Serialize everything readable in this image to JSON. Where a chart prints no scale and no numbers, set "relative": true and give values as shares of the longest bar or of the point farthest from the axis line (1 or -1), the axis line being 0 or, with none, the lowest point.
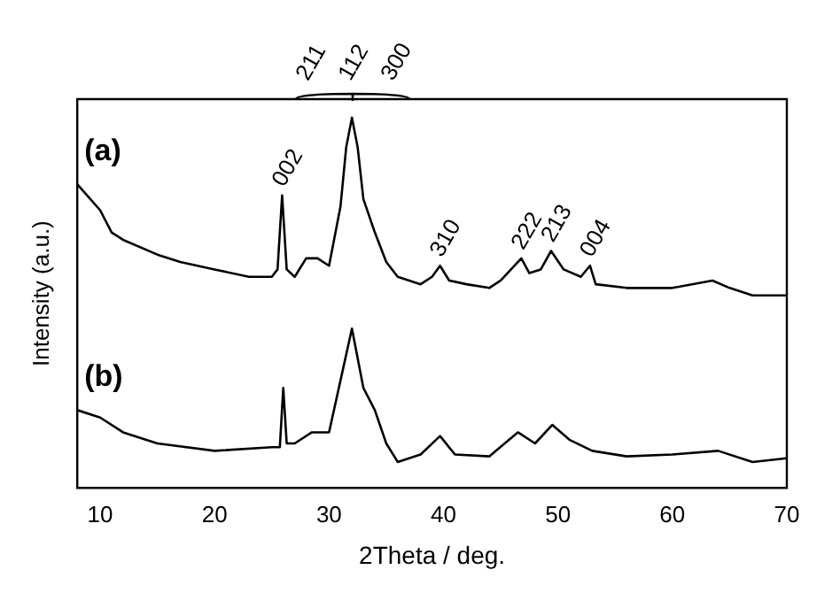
{
  "chart_data": {
    "type": "line",
    "relative": true,
    "xlabel": "2Theta / deg.",
    "ylabel": "Intensity (a.u.)",
    "xlim": [
      8,
      70
    ],
    "xticks": [
      10,
      20,
      30,
      40,
      50,
      60,
      70
    ],
    "grid": false,
    "legend": false,
    "marker": "none",
    "line_style": "solid",
    "series": [
      {
        "name": "(a)",
        "color": "#000000",
        "x": [
          8,
          10,
          11,
          12,
          15,
          17,
          20,
          23,
          25,
          25.5,
          25.9,
          26.3,
          27,
          28,
          29,
          30,
          31,
          31.5,
          32,
          32.5,
          33,
          34,
          35,
          36,
          38,
          39,
          39.7,
          40.5,
          42,
          44,
          45,
          46.8,
          47.5,
          48.5,
          49.4,
          50.5,
          52,
          52.8,
          53.3,
          56,
          60,
          63.5,
          65,
          67,
          70
        ],
        "values": [
          0.82,
          0.75,
          0.69,
          0.67,
          0.63,
          0.61,
          0.59,
          0.57,
          0.57,
          0.59,
          0.79,
          0.59,
          0.57,
          0.62,
          0.62,
          0.6,
          0.76,
          0.92,
          1,
          0.92,
          0.78,
          0.69,
          0.61,
          0.57,
          0.55,
          0.57,
          0.6,
          0.56,
          0.55,
          0.54,
          0.56,
          0.62,
          0.58,
          0.59,
          0.64,
          0.59,
          0.57,
          0.6,
          0.55,
          0.54,
          0.54,
          0.56,
          0.54,
          0.52,
          0.52
        ]
      },
      {
        "name": "(b)",
        "color": "#000000",
        "x": [
          8,
          10,
          12,
          15,
          20,
          25,
          25.7,
          26,
          26.3,
          27,
          28.5,
          30,
          31,
          32,
          33,
          34,
          35,
          36,
          38,
          39.7,
          41,
          44,
          46.5,
          48,
          49.5,
          51,
          53,
          56,
          60,
          64,
          67,
          70
        ],
        "values": [
          0.21,
          0.19,
          0.15,
          0.12,
          0.1,
          0.11,
          0.11,
          0.27,
          0.12,
          0.12,
          0.15,
          0.15,
          0.29,
          0.43,
          0.27,
          0.21,
          0.12,
          0.07,
          0.09,
          0.14,
          0.09,
          0.085,
          0.15,
          0.12,
          0.17,
          0.13,
          0.1,
          0.085,
          0.09,
          0.1,
          0.07,
          0.08
        ]
      }
    ],
    "annotations": [
      {
        "text": "002",
        "x": 25.9,
        "y": 0.79
      },
      "211",
      "112",
      "300",
      {
        "text": "310",
        "x": 39.7,
        "y": 0.6
      },
      {
        "text": "222",
        "x": 46.8,
        "y": 0.62
      },
      {
        "text": "213",
        "x": 49.4,
        "y": 0.64
      },
      {
        "text": "004",
        "x": 52.8,
        "y": 0.6
      }
    ]
  }
}
